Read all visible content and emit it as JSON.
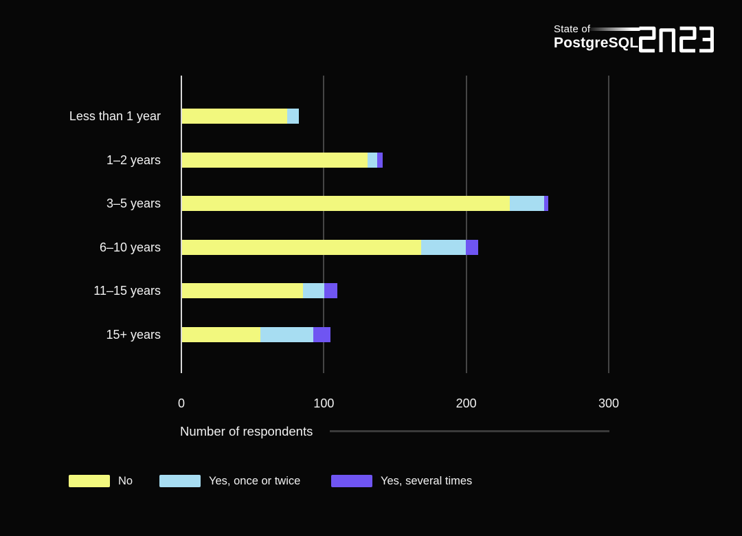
{
  "logo": {
    "line1": "State of",
    "line2": "PostgreSQL",
    "year": "2023"
  },
  "chart_data": {
    "type": "bar",
    "orientation": "horizontal",
    "stacked": true,
    "categories": [
      "Less than 1 year",
      "1–2 years",
      "3–5 years",
      "6–10 years",
      "11–15 years",
      "15+ years"
    ],
    "series": [
      {
        "name": "No",
        "color": "#F2F87E",
        "values": [
          74,
          130,
          230,
          168,
          85,
          55
        ]
      },
      {
        "name": "Yes, once or twice",
        "color": "#A7DDF2",
        "values": [
          8,
          7,
          24,
          31,
          15,
          37
        ]
      },
      {
        "name": "Yes, several times",
        "color": "#6F55F2",
        "values": [
          0,
          4,
          3,
          9,
          9,
          12
        ]
      }
    ],
    "xlabel": "Number of respondents",
    "xlim": [
      0,
      300
    ],
    "xticks": [
      0,
      100,
      200,
      300
    ],
    "grid": true,
    "legend_position": "bottom",
    "background": "#070707"
  },
  "legend": {
    "items": [
      {
        "label": "No",
        "color": "#F2F87E"
      },
      {
        "label": "Yes, once or twice",
        "color": "#A7DDF2"
      },
      {
        "label": "Yes, several times",
        "color": "#6F55F2"
      }
    ]
  }
}
